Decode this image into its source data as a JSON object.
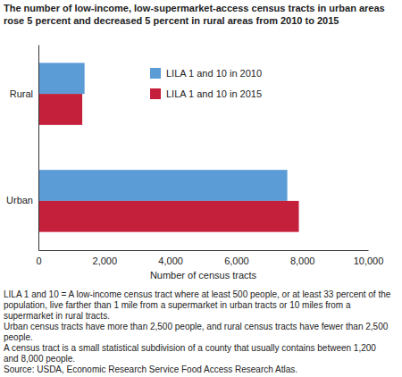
{
  "chart_data": {
    "type": "bar",
    "orientation": "horizontal",
    "title": "The number of low-income, low-supermarket-access census tracts in urban areas rose 5 percent and decreased 5 percent in rural areas from 2010 to 2015",
    "categories": [
      "Rural",
      "Urban"
    ],
    "series": [
      {
        "name": "LILA 1 and 10 in 2010",
        "color": "#5b9bd6",
        "values": [
          1400,
          7550
        ]
      },
      {
        "name": "LILA 1 and 10 in 2015",
        "color": "#c41f3b",
        "values": [
          1330,
          7900
        ]
      }
    ],
    "x_label": "Number of census tracts",
    "xlim": [
      0,
      10000
    ],
    "xticks": [
      0,
      {
        "value": 2000,
        "label": "2,000"
      },
      {
        "value": 4000,
        "label": "4,000"
      },
      {
        "value": 6000,
        "label": "6,000"
      },
      {
        "value": 8000,
        "label": "8,000"
      },
      {
        "value": 10000,
        "label": "10,000"
      }
    ],
    "grid": false,
    "legend": "top",
    "notes": [
      "LILA 1 and 10 = A low-income census tract where at least 500 people, or at least 33 percent of the population, live farther than 1 mile from a supermarket in urban tracts or 10 miles from a supermarket in rural tracts.",
      "Urban census tracts have more than 2,500 people, and rural census tracts have fewer than 2,500 people.",
      "A census tract is a small statistical subdivision of a county that usually contains between 1,200 and 8,000 people.",
      "Source: USDA, Economic Research Service Food Access Research Atlas."
    ]
  }
}
